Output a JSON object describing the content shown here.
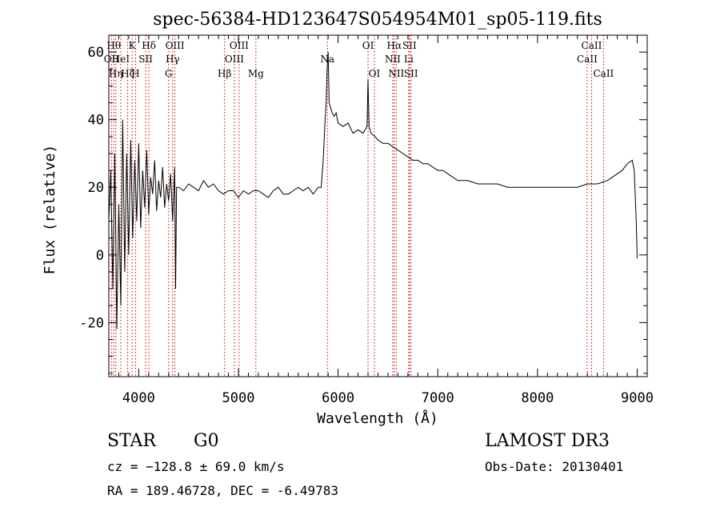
{
  "chart_data": {
    "type": "line",
    "title": "spec-56384-HD123647S054954M01_sp05-119.fits",
    "xlabel": "Wavelength (Å)",
    "ylabel": "Flux (relative)",
    "xlim": [
      3700,
      9100
    ],
    "ylim": [
      -36,
      65
    ],
    "xticks": [
      4000,
      5000,
      6000,
      7000,
      8000,
      9000
    ],
    "yticks": [
      -20,
      0,
      20,
      40,
      60
    ],
    "grid": false,
    "line_color": "#000000",
    "marker_color": "#cc0000",
    "series": [
      {
        "x": [
          3700,
          3720,
          3740,
          3760,
          3780,
          3800,
          3820,
          3840,
          3860,
          3880,
          3900,
          3920,
          3940,
          3960,
          3980,
          4000,
          4020,
          4040,
          4060,
          4080,
          4100,
          4120,
          4140,
          4160,
          4180,
          4200,
          4220,
          4240,
          4260,
          4280,
          4300,
          4320,
          4340,
          4360,
          4370,
          4380,
          4400,
          4450,
          4500,
          4550,
          4600,
          4650,
          4700,
          4750,
          4800,
          4850,
          4900,
          4950,
          5000,
          5050,
          5100,
          5150,
          5200,
          5250,
          5300,
          5350,
          5400,
          5450,
          5500,
          5550,
          5600,
          5650,
          5700,
          5750,
          5800,
          5830,
          5850,
          5870,
          5880,
          5890,
          5900,
          5910,
          5920,
          5940,
          5960,
          5980,
          6000,
          6050,
          6100,
          6150,
          6200,
          6250,
          6290,
          6300,
          6310,
          6330,
          6370,
          6400,
          6450,
          6500,
          6550,
          6600,
          6650,
          6700,
          6750,
          6800,
          6850,
          6900,
          6950,
          7000,
          7050,
          7100,
          7150,
          7200,
          7300,
          7400,
          7500,
          7600,
          7700,
          7800,
          7900,
          8000,
          8100,
          8200,
          8300,
          8400,
          8500,
          8600,
          8700,
          8750,
          8800,
          8850,
          8900,
          8950,
          8970,
          8990,
          9000
        ],
        "y": [
          10,
          25,
          -10,
          30,
          -22,
          15,
          -15,
          40,
          -5,
          30,
          0,
          34,
          5,
          28,
          10,
          33,
          8,
          25,
          14,
          31,
          12,
          23,
          18,
          28,
          13,
          22,
          17,
          26,
          14,
          21,
          16,
          24,
          10,
          26,
          -10,
          20,
          20,
          19,
          21,
          20,
          19,
          22,
          20,
          21,
          19,
          18,
          19,
          19,
          17,
          19,
          18,
          19,
          19,
          18,
          17,
          19,
          20,
          18,
          18,
          19,
          20,
          19,
          20,
          18,
          20,
          20,
          28,
          40,
          45,
          55,
          60,
          45,
          44,
          42,
          41,
          42,
          39,
          38,
          39,
          36,
          37,
          36,
          38,
          52,
          38,
          36,
          35,
          34,
          33,
          33,
          32,
          31,
          30,
          29,
          28,
          28,
          27,
          27,
          26,
          25,
          25,
          24,
          23,
          22,
          22,
          21,
          21,
          21,
          20,
          20,
          20,
          20,
          20,
          20,
          20,
          20,
          21,
          21,
          22,
          23,
          24,
          25,
          27,
          28,
          25,
          10,
          -1
        ]
      }
    ],
    "line_markers": [
      {
        "x": 3750,
        "label": "Hθ",
        "row": 0
      },
      {
        "x": 3727,
        "label": "OII",
        "row": 1
      },
      {
        "x": 3770,
        "label": "Hη",
        "row": 2
      },
      {
        "x": 3820,
        "label": "HeI",
        "row": 1
      },
      {
        "x": 3889,
        "label": "Hζ",
        "row": 2
      },
      {
        "x": 3934,
        "label": "K",
        "row": 0
      },
      {
        "x": 3968,
        "label": "H",
        "row": 2
      },
      {
        "x": 4070,
        "label": "SII",
        "row": 1
      },
      {
        "x": 4102,
        "label": "Hδ",
        "row": 0
      },
      {
        "x": 4300,
        "label": "G",
        "row": 2
      },
      {
        "x": 4340,
        "label": "Hγ",
        "row": 1
      },
      {
        "x": 4363,
        "label": "OIII",
        "row": 0
      },
      {
        "x": 4861,
        "label": "Hβ",
        "row": 2
      },
      {
        "x": 4959,
        "label": "OIII",
        "row": 1
      },
      {
        "x": 5007,
        "label": "OIII",
        "row": 0
      },
      {
        "x": 5175,
        "label": "Mg",
        "row": 2
      },
      {
        "x": 5893,
        "label": "Na",
        "row": 1
      },
      {
        "x": 6300,
        "label": "OI",
        "row": 0
      },
      {
        "x": 6364,
        "label": "OI",
        "row": 2
      },
      {
        "x": 6548,
        "label": "NII",
        "row": 1
      },
      {
        "x": 6563,
        "label": "Hα",
        "row": 0
      },
      {
        "x": 6583,
        "label": "NII",
        "row": 2
      },
      {
        "x": 6708,
        "label": "Li",
        "row": 1
      },
      {
        "x": 6716,
        "label": "SII",
        "row": 0
      },
      {
        "x": 6731,
        "label": "SII",
        "row": 2
      },
      {
        "x": 8498,
        "label": "CaII",
        "row": 1
      },
      {
        "x": 8542,
        "label": "CaII",
        "row": 0
      },
      {
        "x": 8662,
        "label": "CaII",
        "row": 2
      }
    ]
  },
  "info": {
    "object_type": "STAR",
    "subclass": "G0",
    "survey": "LAMOST DR3",
    "cz": "cz = −128.8 ± 69.0 km/s",
    "obs_date": "Obs-Date: 20130401",
    "coords": "RA = 189.46728, DEC =  -6.49783"
  }
}
